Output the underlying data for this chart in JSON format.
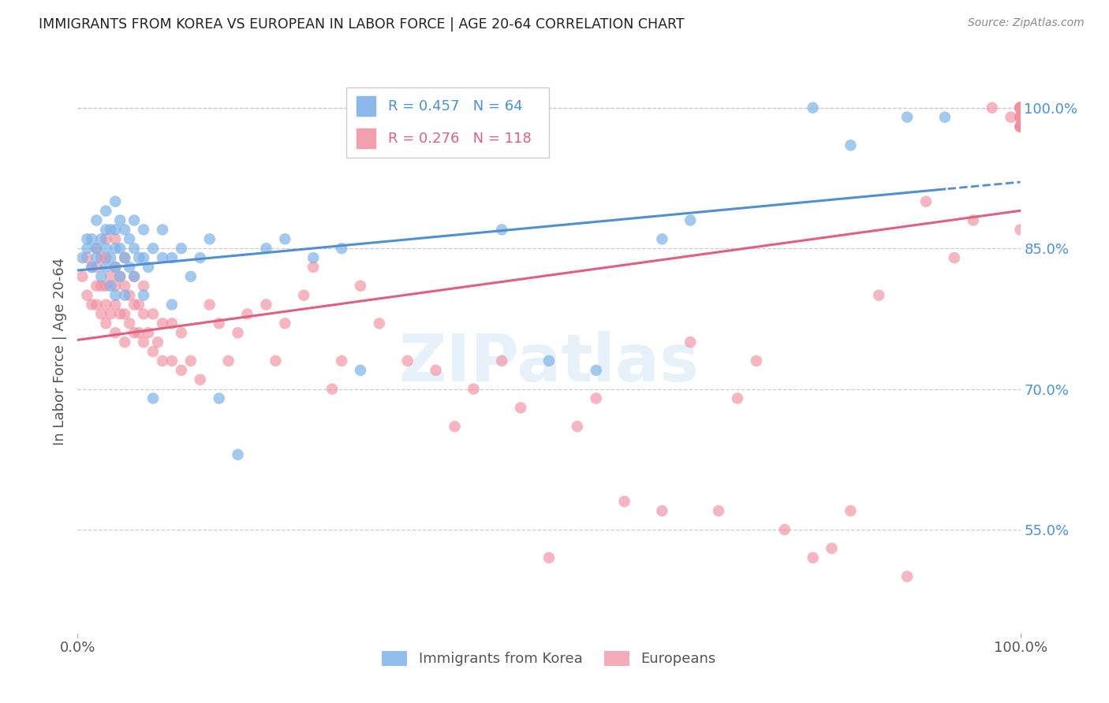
{
  "title": "IMMIGRANTS FROM KOREA VS EUROPEAN IN LABOR FORCE | AGE 20-64 CORRELATION CHART",
  "source": "Source: ZipAtlas.com",
  "ylabel": "In Labor Force | Age 20-64",
  "xlim": [
    0.0,
    1.0
  ],
  "ylim": [
    0.44,
    1.04
  ],
  "yticks": [
    0.55,
    0.7,
    0.85,
    1.0
  ],
  "ytick_labels": [
    "55.0%",
    "70.0%",
    "85.0%",
    "100.0%"
  ],
  "xticks": [
    0.0,
    1.0
  ],
  "xtick_labels": [
    "0.0%",
    "100.0%"
  ],
  "korea_R": 0.457,
  "korea_N": 64,
  "euro_R": 0.276,
  "euro_N": 118,
  "blue_color": "#7EB3E8",
  "pink_color": "#F090A0",
  "blue_line_color": "#5090D0",
  "pink_line_color": "#E06080",
  "watermark": "ZIPatlas",
  "legend_blue": "Immigrants from Korea",
  "legend_pink": "Europeans",
  "korea_x": [
    0.005,
    0.01,
    0.01,
    0.015,
    0.015,
    0.02,
    0.02,
    0.02,
    0.025,
    0.025,
    0.03,
    0.03,
    0.03,
    0.03,
    0.035,
    0.035,
    0.035,
    0.04,
    0.04,
    0.04,
    0.04,
    0.04,
    0.045,
    0.045,
    0.045,
    0.05,
    0.05,
    0.05,
    0.055,
    0.055,
    0.06,
    0.06,
    0.06,
    0.065,
    0.07,
    0.07,
    0.07,
    0.075,
    0.08,
    0.08,
    0.09,
    0.09,
    0.1,
    0.1,
    0.11,
    0.12,
    0.13,
    0.14,
    0.15,
    0.17,
    0.2,
    0.22,
    0.25,
    0.28,
    0.3,
    0.45,
    0.5,
    0.55,
    0.62,
    0.65,
    0.78,
    0.82,
    0.88,
    0.92
  ],
  "korea_y": [
    0.84,
    0.85,
    0.86,
    0.83,
    0.86,
    0.84,
    0.85,
    0.88,
    0.82,
    0.86,
    0.83,
    0.85,
    0.87,
    0.89,
    0.81,
    0.84,
    0.87,
    0.8,
    0.83,
    0.85,
    0.87,
    0.9,
    0.82,
    0.85,
    0.88,
    0.8,
    0.84,
    0.87,
    0.83,
    0.86,
    0.82,
    0.85,
    0.88,
    0.84,
    0.8,
    0.84,
    0.87,
    0.83,
    0.69,
    0.85,
    0.84,
    0.87,
    0.79,
    0.84,
    0.85,
    0.82,
    0.84,
    0.86,
    0.69,
    0.63,
    0.85,
    0.86,
    0.84,
    0.85,
    0.72,
    0.87,
    0.73,
    0.72,
    0.86,
    0.88,
    1.0,
    0.96,
    0.99,
    0.99
  ],
  "euro_x": [
    0.005,
    0.01,
    0.01,
    0.015,
    0.015,
    0.02,
    0.02,
    0.02,
    0.02,
    0.025,
    0.025,
    0.025,
    0.03,
    0.03,
    0.03,
    0.03,
    0.03,
    0.035,
    0.035,
    0.04,
    0.04,
    0.04,
    0.04,
    0.04,
    0.045,
    0.045,
    0.05,
    0.05,
    0.05,
    0.05,
    0.055,
    0.055,
    0.06,
    0.06,
    0.06,
    0.065,
    0.065,
    0.07,
    0.07,
    0.07,
    0.075,
    0.08,
    0.08,
    0.085,
    0.09,
    0.09,
    0.1,
    0.1,
    0.11,
    0.11,
    0.12,
    0.13,
    0.14,
    0.15,
    0.16,
    0.17,
    0.18,
    0.2,
    0.21,
    0.22,
    0.24,
    0.25,
    0.27,
    0.28,
    0.3,
    0.32,
    0.35,
    0.38,
    0.4,
    0.42,
    0.45,
    0.47,
    0.5,
    0.53,
    0.55,
    0.58,
    0.62,
    0.65,
    0.68,
    0.7,
    0.72,
    0.75,
    0.78,
    0.8,
    0.82,
    0.85,
    0.88,
    0.9,
    0.93,
    0.95,
    0.97,
    0.99,
    1.0,
    1.0,
    1.0,
    1.0,
    1.0,
    1.0,
    1.0,
    1.0,
    1.0,
    1.0,
    1.0,
    1.0,
    1.0,
    1.0,
    1.0,
    1.0,
    1.0,
    1.0,
    1.0,
    1.0,
    1.0,
    1.0,
    1.0,
    1.0,
    1.0,
    1.0
  ],
  "euro_y": [
    0.82,
    0.8,
    0.84,
    0.79,
    0.83,
    0.79,
    0.81,
    0.83,
    0.85,
    0.78,
    0.81,
    0.84,
    0.77,
    0.79,
    0.81,
    0.84,
    0.86,
    0.78,
    0.82,
    0.76,
    0.79,
    0.81,
    0.83,
    0.86,
    0.78,
    0.82,
    0.75,
    0.78,
    0.81,
    0.84,
    0.77,
    0.8,
    0.76,
    0.79,
    0.82,
    0.76,
    0.79,
    0.75,
    0.78,
    0.81,
    0.76,
    0.74,
    0.78,
    0.75,
    0.73,
    0.77,
    0.73,
    0.77,
    0.72,
    0.76,
    0.73,
    0.71,
    0.79,
    0.77,
    0.73,
    0.76,
    0.78,
    0.79,
    0.73,
    0.77,
    0.8,
    0.83,
    0.7,
    0.73,
    0.81,
    0.77,
    0.73,
    0.72,
    0.66,
    0.7,
    0.73,
    0.68,
    0.52,
    0.66,
    0.69,
    0.58,
    0.57,
    0.75,
    0.57,
    0.69,
    0.73,
    0.55,
    0.52,
    0.53,
    0.57,
    0.8,
    0.5,
    0.9,
    0.84,
    0.88,
    1.0,
    0.99,
    0.99,
    1.0,
    1.0,
    0.99,
    1.0,
    0.99,
    1.0,
    1.0,
    0.99,
    0.98,
    1.0,
    1.0,
    0.99,
    1.0,
    0.99,
    0.98,
    1.0,
    0.99,
    1.0,
    0.98,
    0.99,
    0.87,
    1.0,
    0.99,
    1.0,
    0.98
  ]
}
